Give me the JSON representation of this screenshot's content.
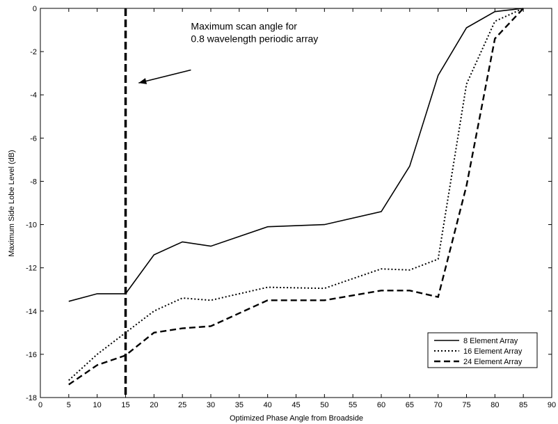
{
  "chart_data": {
    "type": "line",
    "title": "",
    "xlabel": "Optimized Phase Angle from Broadside",
    "ylabel": "Maximum Side Lobe Level (dB)",
    "xlim": [
      0,
      90
    ],
    "ylim": [
      -18,
      0
    ],
    "xticks": [
      0,
      5,
      10,
      15,
      20,
      25,
      30,
      35,
      40,
      45,
      50,
      55,
      60,
      65,
      70,
      75,
      80,
      85,
      90
    ],
    "yticks": [
      -18,
      -16,
      -14,
      -12,
      -10,
      -8,
      -6,
      -4,
      -2,
      0
    ],
    "grid": false,
    "legend_position": "bottom-right",
    "series": [
      {
        "name": "8 Element Array",
        "style": "solid",
        "x": [
          5,
          10,
          15,
          20,
          25,
          30,
          40,
          50,
          60,
          65,
          70,
          75,
          80,
          85
        ],
        "y": [
          -13.55,
          -13.2,
          -13.2,
          -11.4,
          -10.8,
          -11.0,
          -10.1,
          -10.0,
          -9.4,
          -7.3,
          -3.1,
          -0.9,
          -0.15,
          0
        ]
      },
      {
        "name": "16 Element Array",
        "style": "dotted",
        "x": [
          5,
          10,
          15,
          20,
          25,
          30,
          40,
          50,
          60,
          65,
          70,
          75,
          80,
          85
        ],
        "y": [
          -17.2,
          -16.0,
          -15.0,
          -14.0,
          -13.4,
          -13.5,
          -12.9,
          -12.95,
          -12.05,
          -12.1,
          -11.6,
          -3.5,
          -0.6,
          0
        ]
      },
      {
        "name": "24 Element Array",
        "style": "dashed",
        "x": [
          5,
          10,
          15,
          20,
          25,
          30,
          40,
          50,
          60,
          65,
          70,
          75,
          80,
          85
        ],
        "y": [
          -17.4,
          -16.5,
          -16.05,
          -15.0,
          -14.8,
          -14.7,
          -13.5,
          -13.5,
          -13.05,
          -13.05,
          -13.35,
          -8.2,
          -1.4,
          0
        ]
      }
    ],
    "reference_line": {
      "x": 15,
      "style": "dashed"
    },
    "annotation": {
      "lines": [
        "Maximum scan angle for",
        "0.8 wavelength periodic array"
      ],
      "arrow": true,
      "text_anchor": [
        26.5,
        -1.5
      ],
      "arrow_from": [
        26.5,
        -2.85
      ],
      "arrow_to": [
        17.3,
        -3.45
      ]
    }
  }
}
